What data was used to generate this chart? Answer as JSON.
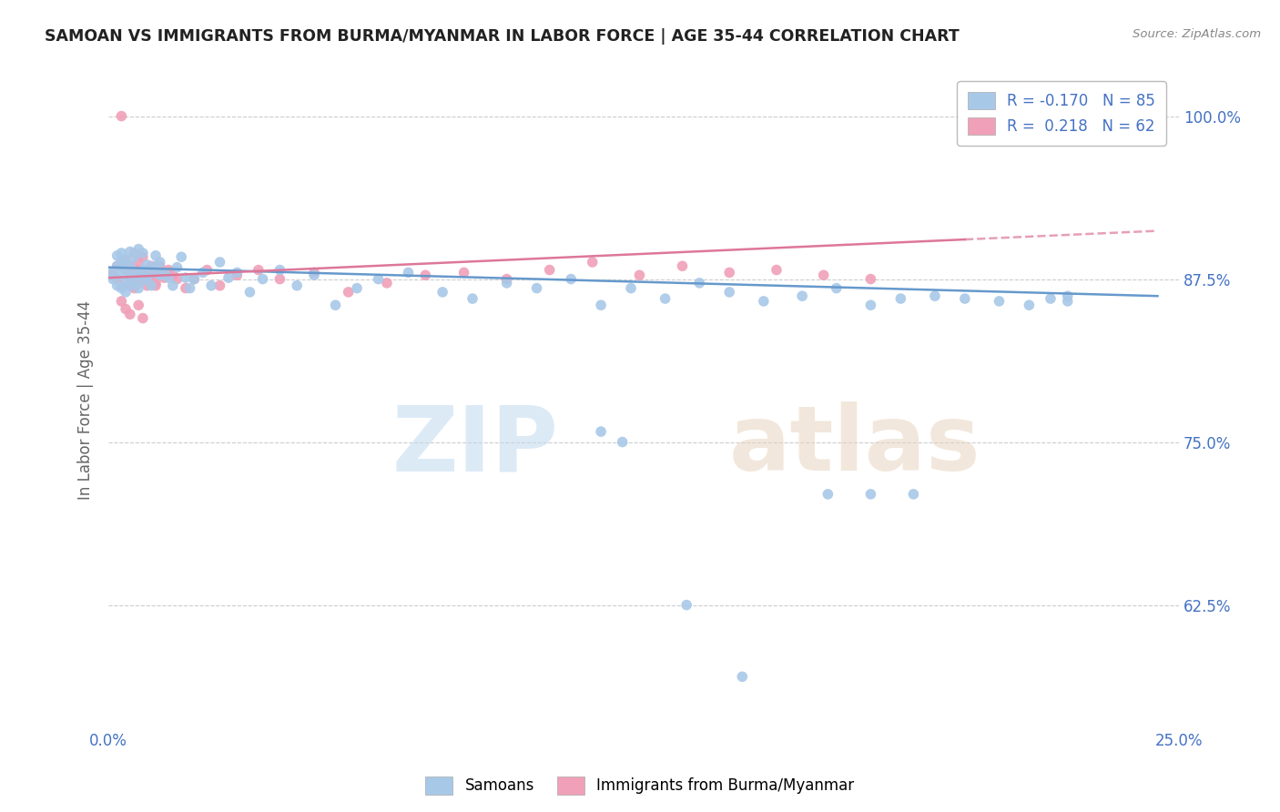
{
  "title": "SAMOAN VS IMMIGRANTS FROM BURMA/MYANMAR IN LABOR FORCE | AGE 35-44 CORRELATION CHART",
  "source": "Source: ZipAtlas.com",
  "ylabel": "In Labor Force | Age 35-44",
  "ytick_labels": [
    "100.0%",
    "87.5%",
    "75.0%",
    "62.5%"
  ],
  "ytick_values": [
    1.0,
    0.875,
    0.75,
    0.625
  ],
  "xlim": [
    0.0,
    0.25
  ],
  "ylim": [
    0.53,
    1.035
  ],
  "r_samoan": "-0.170",
  "n_samoan": "85",
  "r_burma": "0.218",
  "n_burma": "62",
  "blue_color": "#A8C8E8",
  "pink_color": "#F0A0B8",
  "blue_line_color": "#6699CC",
  "pink_line_color": "#DD7799",
  "label_color": "#4472C4",
  "background_color": "#FFFFFF",
  "samoan_x": [
    0.001,
    0.001,
    0.002,
    0.002,
    0.002,
    0.003,
    0.003,
    0.003,
    0.003,
    0.004,
    0.004,
    0.004,
    0.004,
    0.005,
    0.005,
    0.005,
    0.005,
    0.006,
    0.006,
    0.006,
    0.007,
    0.007,
    0.007,
    0.008,
    0.008,
    0.008,
    0.009,
    0.009,
    0.01,
    0.01,
    0.011,
    0.011,
    0.012,
    0.012,
    0.013,
    0.014,
    0.015,
    0.016,
    0.017,
    0.018,
    0.019,
    0.02,
    0.022,
    0.024,
    0.026,
    0.028,
    0.03,
    0.033,
    0.036,
    0.04,
    0.044,
    0.048,
    0.053,
    0.058,
    0.063,
    0.07,
    0.078,
    0.085,
    0.093,
    0.1,
    0.108,
    0.115,
    0.122,
    0.13,
    0.138,
    0.145,
    0.153,
    0.162,
    0.17,
    0.178,
    0.185,
    0.193,
    0.2,
    0.208,
    0.215,
    0.22,
    0.224,
    0.224,
    0.168,
    0.178,
    0.188,
    0.115,
    0.12,
    0.135,
    0.148
  ],
  "samoan_y": [
    0.88,
    0.875,
    0.87,
    0.885,
    0.893,
    0.878,
    0.868,
    0.888,
    0.895,
    0.882,
    0.872,
    0.865,
    0.89,
    0.876,
    0.886,
    0.87,
    0.896,
    0.88,
    0.872,
    0.892,
    0.878,
    0.868,
    0.898,
    0.882,
    0.874,
    0.895,
    0.876,
    0.886,
    0.88,
    0.87,
    0.885,
    0.893,
    0.878,
    0.888,
    0.88,
    0.876,
    0.87,
    0.884,
    0.892,
    0.876,
    0.868,
    0.875,
    0.88,
    0.87,
    0.888,
    0.876,
    0.88,
    0.865,
    0.875,
    0.882,
    0.87,
    0.878,
    0.855,
    0.868,
    0.875,
    0.88,
    0.865,
    0.86,
    0.872,
    0.868,
    0.875,
    0.855,
    0.868,
    0.86,
    0.872,
    0.865,
    0.858,
    0.862,
    0.868,
    0.855,
    0.86,
    0.862,
    0.86,
    0.858,
    0.855,
    0.86,
    0.862,
    0.858,
    0.71,
    0.71,
    0.71,
    0.758,
    0.75,
    0.625,
    0.57
  ],
  "burma_x": [
    0.001,
    0.001,
    0.002,
    0.002,
    0.003,
    0.003,
    0.003,
    0.004,
    0.004,
    0.005,
    0.005,
    0.005,
    0.006,
    0.006,
    0.006,
    0.007,
    0.007,
    0.007,
    0.008,
    0.008,
    0.009,
    0.009,
    0.01,
    0.01,
    0.011,
    0.011,
    0.012,
    0.013,
    0.014,
    0.015,
    0.016,
    0.018,
    0.02,
    0.023,
    0.026,
    0.03,
    0.035,
    0.04,
    0.048,
    0.056,
    0.065,
    0.074,
    0.083,
    0.093,
    0.103,
    0.113,
    0.124,
    0.134,
    0.145,
    0.156,
    0.167,
    0.178,
    0.003,
    0.004,
    0.005,
    0.006,
    0.007,
    0.008,
    0.009,
    0.01,
    0.011,
    0.012
  ],
  "burma_y": [
    0.88,
    0.878,
    0.875,
    0.885,
    0.87,
    0.888,
    1.0,
    0.882,
    0.89,
    0.876,
    0.87,
    0.885,
    0.878,
    0.868,
    0.895,
    0.882,
    0.872,
    0.888,
    0.876,
    0.892,
    0.87,
    0.88,
    0.875,
    0.885,
    0.878,
    0.87,
    0.88,
    0.876,
    0.882,
    0.878,
    0.875,
    0.868,
    0.875,
    0.882,
    0.87,
    0.878,
    0.882,
    0.875,
    0.88,
    0.865,
    0.872,
    0.878,
    0.88,
    0.875,
    0.882,
    0.888,
    0.878,
    0.885,
    0.88,
    0.882,
    0.878,
    0.875,
    0.858,
    0.852,
    0.848,
    0.87,
    0.855,
    0.845,
    0.88,
    0.878,
    0.872,
    0.885
  ]
}
